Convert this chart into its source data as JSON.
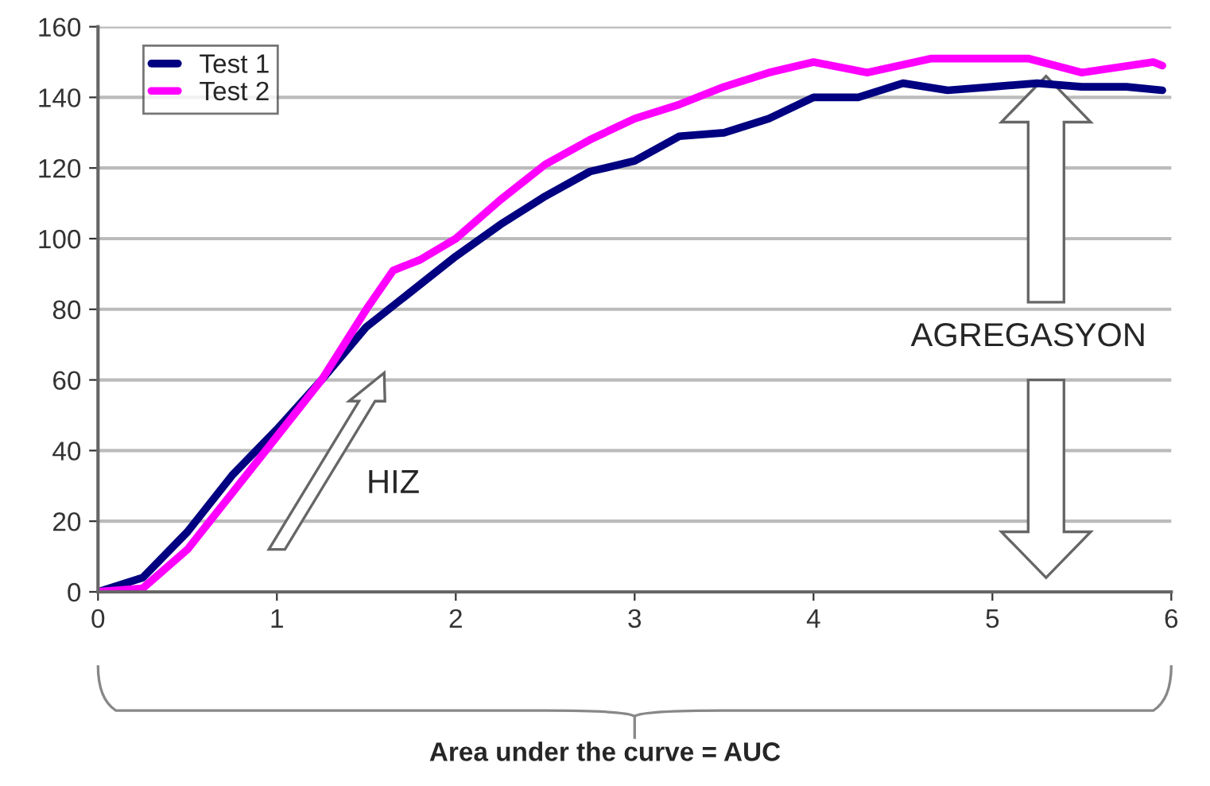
{
  "chart_data": {
    "type": "line",
    "xlabel": "Area under the curve = AUC",
    "xlim": [
      0,
      6
    ],
    "xticks": [
      0,
      1,
      2,
      3,
      4,
      5,
      6
    ],
    "ylim": [
      0,
      160
    ],
    "yticks": [
      0,
      20,
      40,
      60,
      80,
      100,
      120,
      140,
      160
    ],
    "grid": "y",
    "legend": "top left",
    "marker": "none",
    "line_style": "solid",
    "annotations": [
      "HIZ",
      "AGREGASYON"
    ],
    "series": [
      {
        "name": "Test 1",
        "color": "#000080",
        "x": [
          0,
          0.25,
          0.5,
          0.75,
          1.0,
          1.25,
          1.5,
          1.75,
          2.0,
          2.25,
          2.5,
          2.75,
          3.0,
          3.25,
          3.5,
          3.75,
          4.0,
          4.25,
          4.5,
          4.75,
          5.0,
          5.25,
          5.5,
          5.75,
          5.95
        ],
        "values": [
          0,
          4,
          17,
          33,
          46,
          60,
          75,
          85,
          95,
          104,
          112,
          119,
          122,
          129,
          130,
          134,
          140,
          140,
          144,
          142,
          143,
          144,
          143,
          143,
          142
        ]
      },
      {
        "name": "Test 2",
        "color": "#ff00ff",
        "x": [
          0,
          0.25,
          0.5,
          0.75,
          1.0,
          1.25,
          1.5,
          1.65,
          1.8,
          2.0,
          2.25,
          2.5,
          2.75,
          3.0,
          3.25,
          3.5,
          3.75,
          4.0,
          4.3,
          4.66,
          5.2,
          5.5,
          5.9,
          5.95
        ],
        "values": [
          0,
          1,
          12,
          28,
          44,
          60,
          80,
          91,
          94,
          100,
          111,
          121,
          128,
          134,
          138,
          143,
          147,
          150,
          147,
          151,
          151,
          147,
          150,
          149
        ]
      }
    ]
  }
}
